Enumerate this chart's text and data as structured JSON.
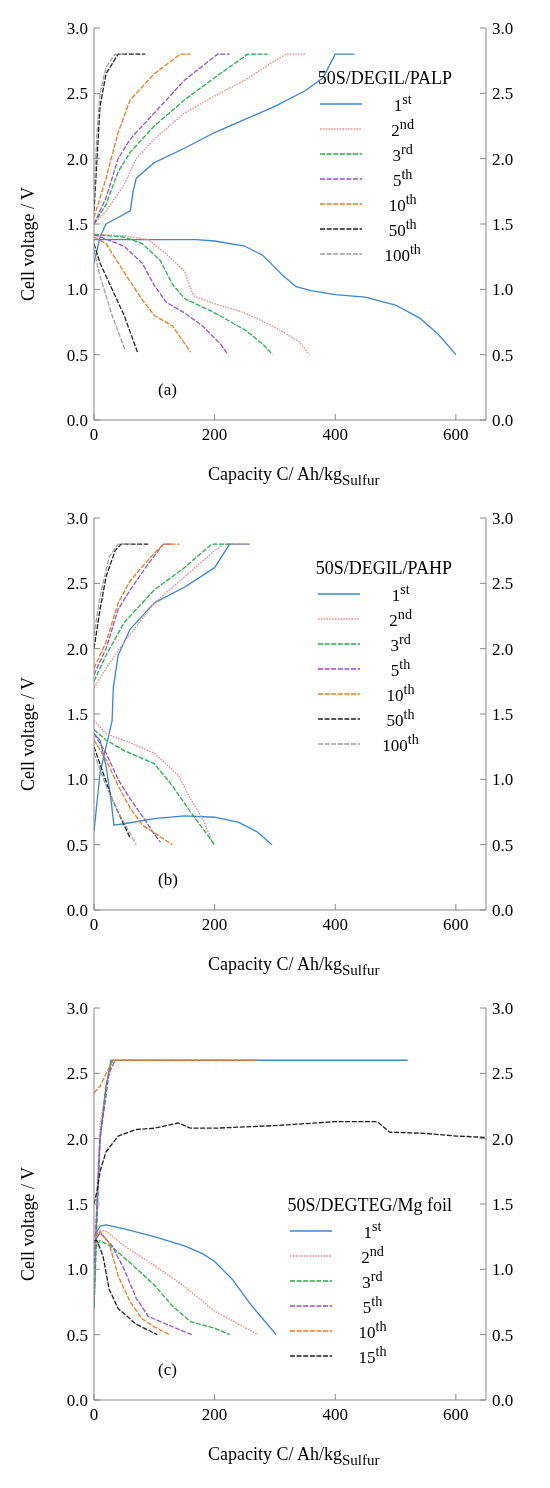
{
  "chart_data": [
    {
      "type": "line",
      "xlabel": "Capacity C/ Ah/kg$_{Sulfur}$",
      "ylabel": "Cell  voltage / V",
      "legend_title": "50S/DEGIL/PALP",
      "annotations": [
        "(a)"
      ],
      "xlim": [
        0,
        650
      ],
      "xticks": [
        0,
        200,
        400,
        600
      ],
      "ylim": [
        0,
        3
      ],
      "yticks": [
        {
          "value": 0,
          "label": "0.0"
        },
        0.5,
        {
          "value": 1,
          "label": "1.0"
        },
        1.5,
        {
          "value": 2,
          "label": "2.0"
        },
        2.5,
        {
          "value": 3,
          "label": "3.0"
        }
      ],
      "y2lim": [
        0,
        3
      ],
      "y2ticks": [
        {
          "value": 0,
          "label": "0.0"
        },
        0.5,
        {
          "value": 1,
          "label": "1.0"
        },
        1.5,
        {
          "value": 2,
          "label": "2.0"
        },
        2.5,
        {
          "value": 3,
          "label": "3.0"
        }
      ],
      "legend": "right",
      "marker": "none",
      "series": [
        {
          "name": "1$^{st}$",
          "color": "#3a86d6",
          "line_style": "solid",
          "x": [
            0,
            20,
            100,
            170,
            200,
            250,
            280,
            310,
            335,
            360,
            400,
            450,
            500,
            540,
            570,
            600,
            null,
            0,
            10,
            20,
            40,
            60,
            65,
            70,
            100,
            150,
            200,
            250,
            300,
            350,
            380,
            400,
            432
          ],
          "values": [
            1.38,
            1.38,
            1.38,
            1.38,
            1.37,
            1.33,
            1.26,
            1.12,
            1.02,
            0.99,
            0.96,
            0.94,
            0.88,
            0.78,
            0.66,
            0.5,
            null,
            1.2,
            1.4,
            1.5,
            1.55,
            1.6,
            1.75,
            1.85,
            1.97,
            2.08,
            2.2,
            2.3,
            2.4,
            2.52,
            2.62,
            2.8,
            2.8
          ]
        },
        {
          "name": "2$^{nd}$",
          "color": "#f08a8a",
          "line_style": "dotted",
          "x": [
            0,
            50,
            90,
            120,
            150,
            165,
            200,
            250,
            300,
            340,
            357,
            null,
            0,
            20,
            50,
            70,
            100,
            150,
            200,
            250,
            290,
            318,
            352
          ],
          "values": [
            1.42,
            1.41,
            1.38,
            1.27,
            1.14,
            0.95,
            0.89,
            0.82,
            0.71,
            0.6,
            0.5,
            null,
            1.5,
            1.6,
            1.8,
            2.0,
            2.15,
            2.35,
            2.48,
            2.6,
            2.72,
            2.8,
            2.8
          ]
        },
        {
          "name": "3$^{rd}$",
          "color": "#22b04a",
          "line_style": "dashed",
          "x": [
            0,
            50,
            80,
            110,
            130,
            150,
            200,
            250,
            280,
            296,
            null,
            0,
            20,
            40,
            60,
            100,
            150,
            200,
            255,
            288
          ],
          "values": [
            1.42,
            1.4,
            1.35,
            1.22,
            1.04,
            0.93,
            0.82,
            0.69,
            0.58,
            0.5,
            null,
            1.5,
            1.65,
            1.9,
            2.05,
            2.25,
            2.45,
            2.62,
            2.8,
            2.8
          ]
        },
        {
          "name": "5$^{th}$",
          "color": "#9650cc",
          "line_style": "dashed",
          "x": [
            0,
            50,
            80,
            100,
            120,
            150,
            180,
            210,
            222,
            null,
            0,
            20,
            40,
            60,
            100,
            150,
            205,
            225
          ],
          "values": [
            1.42,
            1.33,
            1.2,
            1.03,
            0.9,
            0.82,
            0.72,
            0.58,
            0.5,
            null,
            1.5,
            1.7,
            2.0,
            2.15,
            2.35,
            2.6,
            2.8,
            2.8
          ]
        },
        {
          "name": "10$^{th}$",
          "color": "#f07a1e",
          "line_style": "dashed",
          "x": [
            0,
            20,
            50,
            80,
            100,
            130,
            160,
            null,
            0,
            20,
            40,
            60,
            100,
            143,
            160
          ],
          "values": [
            1.4,
            1.35,
            1.13,
            0.92,
            0.8,
            0.72,
            0.52,
            null,
            1.55,
            1.85,
            2.2,
            2.45,
            2.65,
            2.8,
            2.8
          ]
        },
        {
          "name": "50$^{th}$",
          "color": "#222222",
          "line_style": "dashed",
          "x": [
            0,
            10,
            30,
            50,
            72,
            null,
            0,
            5,
            10,
            20,
            40,
            85
          ],
          "values": [
            1.35,
            1.2,
            1.0,
            0.8,
            0.52,
            null,
            1.6,
            2.0,
            2.4,
            2.65,
            2.8,
            2.8
          ]
        },
        {
          "name": "100$^{th}$",
          "color": "#a0a0a0",
          "line_style": "dashed",
          "x": [
            0,
            10,
            30,
            52,
            null,
            0,
            5,
            10,
            20,
            35,
            50
          ],
          "values": [
            1.3,
            1.1,
            0.8,
            0.53,
            null,
            1.7,
            2.2,
            2.5,
            2.7,
            2.8,
            2.8
          ]
        }
      ]
    },
    {
      "type": "line",
      "xlabel": "Capacity C/ Ah/kg$_{Sulfur}$",
      "ylabel": "Cell  voltage / V",
      "legend_title": "50S/DEGIL/PAHP",
      "annotations": [
        "(b)"
      ],
      "xlim": [
        0,
        650
      ],
      "xticks": [
        0,
        200,
        400,
        600
      ],
      "ylim": [
        0,
        3
      ],
      "yticks": [
        {
          "value": 0,
          "label": "0.0"
        },
        0.5,
        {
          "value": 1,
          "label": "1.0"
        },
        1.5,
        {
          "value": 2,
          "label": "2.0"
        },
        2.5,
        {
          "value": 3,
          "label": "3.0"
        }
      ],
      "y2lim": [
        0,
        3
      ],
      "y2ticks": [
        {
          "value": 0,
          "label": "0.0"
        },
        0.5,
        {
          "value": 1,
          "label": "1.0"
        },
        1.5,
        {
          "value": 2,
          "label": "2.0"
        },
        2.5,
        {
          "value": 3,
          "label": "3.0"
        }
      ],
      "legend": "top right",
      "marker": "none",
      "series": [
        {
          "name": "1$^{st}$",
          "color": "#3a86d6",
          "line_style": "solid",
          "x": [
            0,
            10,
            20,
            28,
            33,
            50,
            100,
            150,
            200,
            240,
            270,
            295,
            null,
            0,
            10,
            20,
            30,
            32,
            40,
            60,
            100,
            150,
            200,
            225,
            258
          ],
          "values": [
            1.35,
            1.3,
            1.1,
            0.85,
            0.65,
            0.66,
            0.7,
            0.72,
            0.71,
            0.67,
            0.6,
            0.5,
            null,
            0.6,
            1.05,
            1.25,
            1.45,
            1.7,
            1.95,
            2.15,
            2.35,
            2.47,
            2.62,
            2.8,
            2.8
          ]
        },
        {
          "name": "2$^{nd}$",
          "color": "#f08a8a",
          "line_style": "dotted",
          "x": [
            0,
            20,
            60,
            100,
            140,
            160,
            180,
            198,
            null,
            0,
            20,
            50,
            100,
            150,
            200,
            215,
            255
          ],
          "values": [
            1.45,
            1.35,
            1.28,
            1.2,
            1.03,
            0.85,
            0.7,
            0.5,
            null,
            1.7,
            1.85,
            2.05,
            2.35,
            2.55,
            2.75,
            2.8,
            2.8
          ]
        },
        {
          "name": "3$^{rd}$",
          "color": "#22b04a",
          "line_style": "dashed",
          "x": [
            0,
            20,
            50,
            100,
            130,
            160,
            200,
            null,
            0,
            20,
            50,
            100,
            150,
            195,
            230
          ],
          "values": [
            1.38,
            1.3,
            1.22,
            1.12,
            0.95,
            0.75,
            0.5,
            null,
            1.75,
            1.95,
            2.2,
            2.45,
            2.62,
            2.8,
            2.8
          ]
        },
        {
          "name": "5$^{th}$",
          "color": "#9650cc",
          "line_style": "dashed",
          "x": [
            0,
            20,
            40,
            60,
            80,
            100,
            110,
            null,
            0,
            20,
            40,
            60,
            90,
            115,
            130
          ],
          "values": [
            1.35,
            1.2,
            1.0,
            0.85,
            0.72,
            0.58,
            0.52,
            null,
            1.8,
            2.0,
            2.3,
            2.45,
            2.65,
            2.8,
            2.8
          ]
        },
        {
          "name": "10$^{th}$",
          "color": "#f07a1e",
          "line_style": "dashed",
          "x": [
            0,
            20,
            40,
            60,
            80,
            100,
            130,
            null,
            0,
            20,
            40,
            60,
            90,
            115,
            142
          ],
          "values": [
            1.3,
            1.15,
            0.95,
            0.78,
            0.65,
            0.59,
            0.5,
            null,
            1.85,
            2.05,
            2.35,
            2.52,
            2.68,
            2.8,
            2.8
          ]
        },
        {
          "name": "50$^{th}$",
          "color": "#222222",
          "line_style": "dashed",
          "x": [
            0,
            15,
            30,
            50,
            60,
            null,
            0,
            10,
            20,
            35,
            45,
            90
          ],
          "values": [
            1.25,
            1.05,
            0.85,
            0.65,
            0.55,
            null,
            2.0,
            2.3,
            2.55,
            2.75,
            2.8,
            2.8
          ]
        },
        {
          "name": "100$^{th}$",
          "color": "#a0a0a0",
          "line_style": "dashed",
          "x": [
            0,
            20,
            40,
            70,
            null,
            0,
            10,
            25,
            40,
            60
          ],
          "values": [
            1.2,
            0.95,
            0.75,
            0.5,
            null,
            2.1,
            2.4,
            2.7,
            2.8,
            2.8
          ]
        }
      ]
    },
    {
      "type": "line",
      "xlabel": "Capacity C/ Ah/kg$_{Sulfur}$",
      "ylabel": "Cell  voltage / V",
      "legend_title": "50S/DEGTEG/Mg foil",
      "annotations": [
        "(c)"
      ],
      "xlim": [
        0,
        650
      ],
      "xticks": [
        0,
        200,
        400,
        600
      ],
      "ylim": [
        0,
        3
      ],
      "yticks": [
        {
          "value": 0,
          "label": "0.0"
        },
        0.5,
        {
          "value": 1,
          "label": "1.0"
        },
        1.5,
        {
          "value": 2,
          "label": "2.0"
        },
        2.5,
        {
          "value": 3,
          "label": "3.0"
        }
      ],
      "y2lim": [
        0,
        3
      ],
      "y2ticks": [
        {
          "value": 0,
          "label": "0.0"
        },
        0.5,
        {
          "value": 1,
          "label": "1.0"
        },
        1.5,
        {
          "value": 2,
          "label": "2.0"
        },
        2.5,
        {
          "value": 3,
          "label": "3.0"
        }
      ],
      "legend": "bottom right",
      "marker": "none",
      "series": [
        {
          "name": "1$^{st}$",
          "color": "#3a86d6",
          "line_style": "solid",
          "x": [
            0,
            10,
            20,
            50,
            100,
            150,
            180,
            200,
            230,
            260,
            280,
            302,
            null,
            0,
            5,
            10,
            20,
            28,
            100,
            300,
            520
          ],
          "values": [
            1.25,
            1.33,
            1.34,
            1.31,
            1.25,
            1.18,
            1.12,
            1.06,
            0.92,
            0.73,
            0.62,
            0.5,
            null,
            0.7,
            1.5,
            2.0,
            2.4,
            2.6,
            2.6,
            2.6,
            2.6
          ]
        },
        {
          "name": "2$^{nd}$",
          "color": "#f08a8a",
          "line_style": "dotted",
          "x": [
            0,
            10,
            20,
            50,
            100,
            150,
            200,
            240,
            272,
            null,
            0,
            5,
            10,
            20,
            30
          ],
          "values": [
            1.2,
            1.3,
            1.29,
            1.18,
            1.03,
            0.87,
            0.68,
            0.58,
            0.5,
            null,
            0.8,
            1.6,
            2.1,
            2.4,
            2.6
          ]
        },
        {
          "name": "3$^{rd}$",
          "color": "#22b04a",
          "line_style": "dashed",
          "x": [
            0,
            10,
            30,
            60,
            100,
            130,
            160,
            200,
            225,
            null,
            0,
            10,
            20,
            30
          ],
          "values": [
            1.15,
            1.22,
            1.17,
            1.05,
            0.88,
            0.72,
            0.6,
            0.55,
            0.5,
            null,
            0.7,
            2.0,
            2.4,
            2.6
          ]
        },
        {
          "name": "5$^{th}$",
          "color": "#9650cc",
          "line_style": "dashed",
          "x": [
            0,
            10,
            30,
            50,
            70,
            90,
            120,
            162,
            null,
            0,
            10,
            25,
            35
          ],
          "values": [
            1.2,
            1.28,
            1.18,
            1.0,
            0.78,
            0.64,
            0.58,
            0.5,
            null,
            1.0,
            2.0,
            2.5,
            2.6
          ]
        },
        {
          "name": "10$^{th}$",
          "color": "#f07a1e",
          "line_style": "dashed",
          "x": [
            0,
            10,
            25,
            40,
            60,
            80,
            100,
            125,
            null,
            0,
            10,
            20,
            32,
            270
          ],
          "values": [
            1.25,
            1.29,
            1.2,
            0.95,
            0.75,
            0.62,
            0.56,
            0.5,
            null,
            2.35,
            2.4,
            2.5,
            2.6,
            2.6
          ]
        },
        {
          "name": "15$^{th}$",
          "color": "#222222",
          "line_style": "dashed",
          "x": [
            0,
            5,
            15,
            25,
            40,
            70,
            105,
            null,
            0,
            5,
            10,
            20,
            40,
            70,
            100,
            140,
            160,
            200,
            300,
            400,
            470,
            490,
            550,
            600,
            650
          ],
          "values": [
            1.22,
            1.22,
            1.1,
            0.85,
            0.7,
            0.58,
            0.5,
            null,
            1.5,
            1.6,
            1.75,
            1.9,
            2.02,
            2.07,
            2.08,
            2.12,
            2.08,
            2.08,
            2.1,
            2.13,
            2.13,
            2.05,
            2.04,
            2.02,
            2.01
          ]
        }
      ]
    }
  ]
}
